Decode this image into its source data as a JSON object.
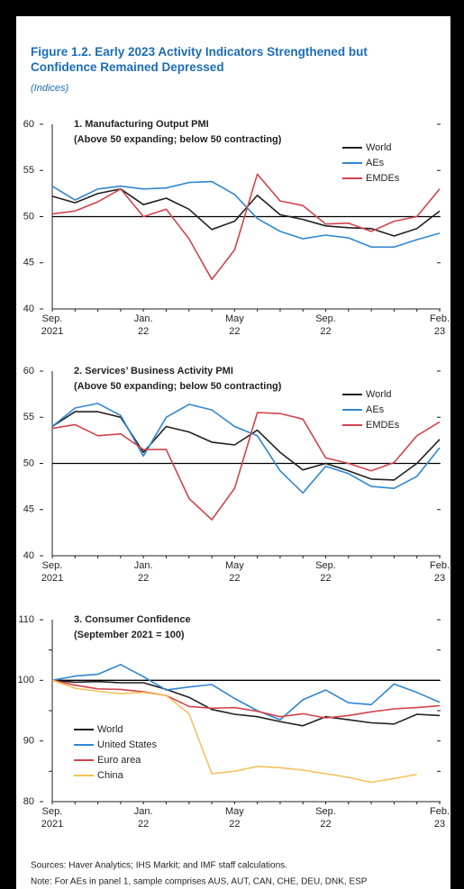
{
  "figure": {
    "title": "Figure 1.2. Early 2023 Activity Indicators Strengthened but Confidence Remained Depressed",
    "subtitle": "(Indices)"
  },
  "chart_data": [
    {
      "type": "line",
      "title": "1. Manufacturing Output PMI",
      "subtitle": "(Above 50 expanding; below 50 contracting)",
      "categories": [
        [
          "Sep.",
          "2021"
        ],
        null,
        null,
        null,
        [
          "Jan.",
          "22"
        ],
        null,
        null,
        null,
        [
          "May",
          "22"
        ],
        null,
        null,
        null,
        [
          "Sep.",
          "22"
        ],
        null,
        null,
        null,
        null,
        [
          "Feb.",
          "23"
        ]
      ],
      "ylim": [
        40,
        60
      ],
      "yticks": [
        40,
        45,
        50,
        55,
        60
      ],
      "hline": 50,
      "legend": "upper right",
      "series": [
        {
          "name": "World",
          "color": "#231f20",
          "values": [
            52.2,
            51.5,
            52.5,
            53.0,
            51.3,
            52.0,
            50.8,
            48.6,
            49.5,
            52.3,
            50.2,
            49.7,
            49.0,
            48.8,
            48.7,
            47.9,
            48.7,
            50.6
          ]
        },
        {
          "name": "AEs",
          "color": "#2f86d0",
          "values": [
            53.3,
            51.8,
            53.0,
            53.3,
            53.0,
            53.1,
            53.7,
            53.8,
            52.4,
            49.8,
            48.4,
            47.6,
            48.0,
            47.7,
            46.7,
            46.7,
            47.5,
            48.2
          ]
        },
        {
          "name": "EMDEs",
          "color": "#d1444d",
          "values": [
            50.3,
            50.6,
            51.6,
            53.0,
            50.0,
            50.8,
            47.6,
            43.2,
            46.4,
            54.6,
            51.7,
            51.2,
            49.2,
            49.3,
            48.4,
            49.5,
            50.0,
            53.0
          ]
        }
      ]
    },
    {
      "type": "line",
      "title": "2. Services’ Business Activity PMI",
      "subtitle": "(Above 50 expanding; below 50 contracting)",
      "categories": [
        [
          "Sep.",
          "2021"
        ],
        null,
        null,
        null,
        [
          "Jan.",
          "22"
        ],
        null,
        null,
        null,
        [
          "May",
          "22"
        ],
        null,
        null,
        null,
        [
          "Sep.",
          "22"
        ],
        null,
        null,
        null,
        null,
        [
          "Feb.",
          "23"
        ]
      ],
      "ylim": [
        40,
        60
      ],
      "yticks": [
        40,
        45,
        50,
        55,
        60
      ],
      "hline": 50,
      "legend": "upper right",
      "series": [
        {
          "name": "World",
          "color": "#231f20",
          "values": [
            54.0,
            55.6,
            55.6,
            55.0,
            51.2,
            54.0,
            53.4,
            52.3,
            52.0,
            53.6,
            51.2,
            49.3,
            50.0,
            49.2,
            48.3,
            48.2,
            50.0,
            52.6
          ]
        },
        {
          "name": "AEs",
          "color": "#2f86d0",
          "values": [
            54.0,
            56.0,
            56.5,
            55.2,
            50.8,
            55.0,
            56.4,
            55.8,
            54.0,
            53.0,
            49.2,
            46.8,
            49.7,
            48.9,
            47.5,
            47.3,
            48.6,
            51.7
          ]
        },
        {
          "name": "EMDEs",
          "color": "#d1444d",
          "values": [
            53.8,
            54.2,
            53.0,
            53.2,
            51.5,
            51.5,
            46.2,
            43.9,
            47.3,
            55.5,
            55.4,
            54.8,
            50.6,
            50.0,
            49.2,
            50.1,
            53.0,
            54.5
          ]
        }
      ]
    },
    {
      "type": "line",
      "title": "3. Consumer Confidence",
      "subtitle": "(September 2021 = 100)",
      "categories": [
        [
          "Sep.",
          "2021"
        ],
        null,
        null,
        null,
        [
          "Jan.",
          "22"
        ],
        null,
        null,
        null,
        [
          "May",
          "22"
        ],
        null,
        null,
        null,
        [
          "Sep.",
          "22"
        ],
        null,
        null,
        null,
        null,
        [
          "Feb.",
          "23"
        ]
      ],
      "ylim": [
        80,
        110
      ],
      "yticks": [
        80,
        90,
        100,
        110
      ],
      "yminor": [
        85,
        95,
        105
      ],
      "hline": 100,
      "legend": "lower left",
      "series": [
        {
          "name": "World",
          "color": "#231f20",
          "values": [
            100,
            99.7,
            99.8,
            99.6,
            99.6,
            98.5,
            97.2,
            95.2,
            94.4,
            94.0,
            93.2,
            92.5,
            94.0,
            93.5,
            93.0,
            92.8,
            94.4,
            94.2
          ]
        },
        {
          "name": "United States",
          "color": "#2f86d0",
          "values": [
            100,
            100.7,
            101.0,
            102.6,
            100.6,
            98.4,
            98.9,
            99.3,
            97.0,
            95.0,
            93.5,
            96.8,
            98.4,
            96.3,
            96.0,
            99.4,
            98.0,
            96.4
          ]
        },
        {
          "name": "Euro area",
          "color": "#d1444d",
          "values": [
            100,
            99.2,
            98.6,
            98.5,
            98.1,
            97.5,
            95.7,
            95.4,
            95.5,
            94.9,
            94.0,
            94.5,
            93.8,
            94.2,
            94.8,
            95.3,
            95.5,
            95.8
          ]
        },
        {
          "name": "China",
          "color": "#f5c15c",
          "values": [
            100,
            98.7,
            98.2,
            97.8,
            98.0,
            97.5,
            94.5,
            84.6,
            85.0,
            85.8,
            85.6,
            85.2,
            84.6,
            84.0,
            83.2,
            83.8,
            84.5,
            null
          ]
        }
      ]
    }
  ],
  "footer": {
    "sources": "Sources: Haver Analytics; IHS Markit; and IMF staff calculations.",
    "note": "Note: For AEs in panel 1, sample comprises AUS, AUT, CAN, CHE, DEU, DNK, ESP"
  }
}
